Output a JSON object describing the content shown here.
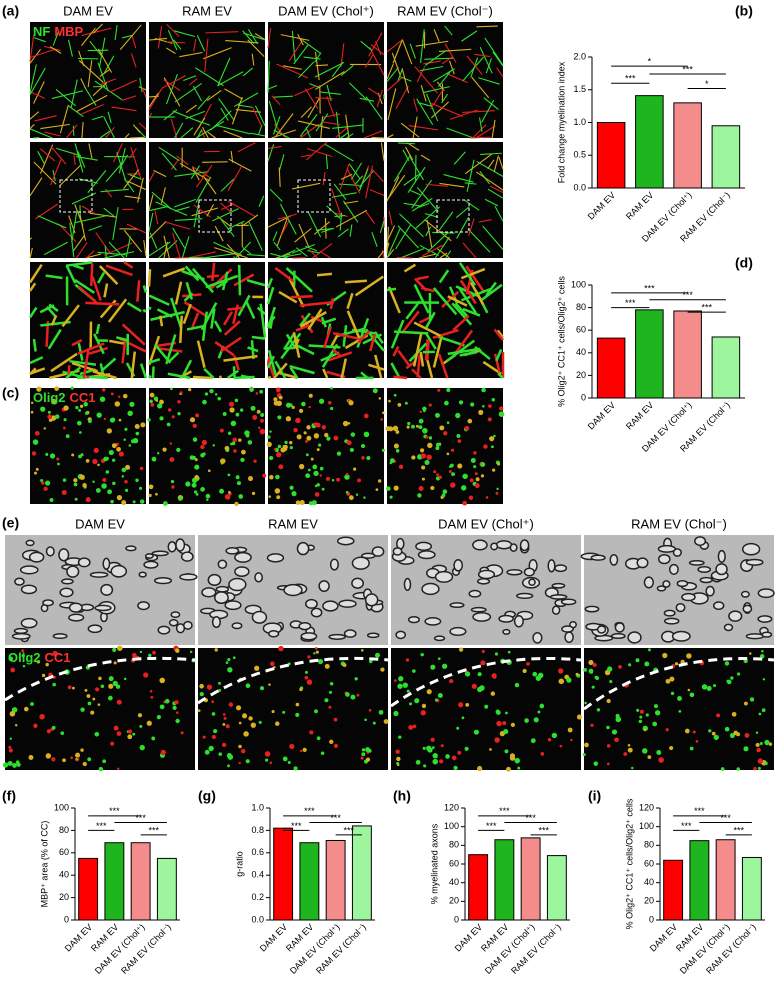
{
  "figure": {
    "panel_labels": [
      "(a)",
      "(b)",
      "(c)",
      "(d)",
      "(e)",
      "(f)",
      "(g)",
      "(h)",
      "(i)"
    ],
    "columns_a": [
      "DAM EV",
      "RAM EV",
      "DAM EV (Chol⁺)",
      "RAM EV (Chol⁻)"
    ],
    "columns_e": [
      "DAM EV",
      "RAM EV",
      "DAM EV (Chol⁺)",
      "RAM EV (Chol⁻)"
    ],
    "stain_a": [
      "NF",
      "MBP"
    ],
    "stain_c": [
      "Olig2",
      "CC1"
    ],
    "stain_e": [
      "Olig2",
      "CC1"
    ]
  },
  "chart_data": [
    {
      "type": "bar",
      "y_label": "Fold change myelination index",
      "categories": [
        "DAM EV",
        "RAM EV",
        "DAM EV (Chol⁺)",
        "RAM EV (Chol⁻)"
      ],
      "values": [
        1.0,
        1.41,
        1.3,
        0.95
      ],
      "colors": [
        "#ff0000",
        "#1fb51f",
        "#f58c8c",
        "#9df59d"
      ],
      "ylim": [
        0,
        2
      ],
      "yticks": [
        {
          "value": 0,
          "label": "0.0"
        },
        {
          "value": 0.5,
          "label": "0.5"
        },
        {
          "value": 1,
          "label": "1.0"
        },
        {
          "value": 1.5,
          "label": "1.5"
        },
        {
          "value": 2,
          "label": "2.0"
        }
      ],
      "annotations": [
        "***",
        "*",
        "***",
        "*"
      ]
    },
    {
      "type": "bar",
      "y_label": "% Olig2⁺ CC1⁺ cells/Olig2⁺ cells",
      "categories": [
        "DAM EV",
        "RAM EV",
        "DAM EV (Chol⁺)",
        "RAM EV (Chol⁻)"
      ],
      "values": [
        53,
        78,
        77,
        54
      ],
      "colors": [
        "#ff0000",
        "#1fb51f",
        "#f58c8c",
        "#9df59d"
      ],
      "ylim": [
        0,
        100
      ],
      "yticks": [
        0,
        20,
        40,
        60,
        80,
        100
      ],
      "annotations": [
        "***",
        "***",
        "***",
        "***"
      ]
    },
    {
      "type": "bar",
      "y_label": "MBP⁺ area (% of CC)",
      "categories": [
        "DAM EV",
        "RAM EV",
        "DAM EV (Chol⁺)",
        "RAM EV (Chol⁻)"
      ],
      "values": [
        55,
        69,
        69,
        55
      ],
      "colors": [
        "#ff0000",
        "#1fb51f",
        "#f58c8c",
        "#9df59d"
      ],
      "ylim": [
        0,
        100
      ],
      "yticks": [
        0,
        20,
        40,
        60,
        80,
        100
      ],
      "annotations": [
        "***",
        "***",
        "***",
        "***"
      ]
    },
    {
      "type": "bar",
      "y_label": "g-ratio",
      "categories": [
        "DAM EV",
        "RAM EV",
        "DAM EV (Chol⁺)",
        "RAM EV (Chol⁻)"
      ],
      "values": [
        0.82,
        0.69,
        0.71,
        0.84
      ],
      "colors": [
        "#ff0000",
        "#1fb51f",
        "#f58c8c",
        "#9df59d"
      ],
      "ylim": [
        0,
        1
      ],
      "yticks": [
        {
          "value": 0,
          "label": "0.0"
        },
        {
          "value": 0.2,
          "label": "0.2"
        },
        {
          "value": 0.4,
          "label": "0.4"
        },
        {
          "value": 0.6,
          "label": "0.6"
        },
        {
          "value": 0.8,
          "label": "0.8"
        },
        {
          "value": 1,
          "label": "1.0"
        }
      ],
      "annotations": [
        "***",
        "***",
        "***",
        "***"
      ]
    },
    {
      "type": "bar",
      "y_label": "% myelinated axons",
      "categories": [
        "DAM EV",
        "RAM EV",
        "DAM EV (Chol⁺)",
        "RAM EV (Chol⁻)"
      ],
      "values": [
        70,
        86,
        88,
        69
      ],
      "colors": [
        "#ff0000",
        "#1fb51f",
        "#f58c8c",
        "#9df59d"
      ],
      "ylim": [
        0,
        120
      ],
      "yticks": [
        0,
        20,
        40,
        60,
        80,
        100,
        120
      ],
      "annotations": [
        "***",
        "***",
        "***",
        "***"
      ]
    },
    {
      "type": "bar",
      "y_label": "% Olig2⁺ CC1⁺ cells/Olig2⁺ cells",
      "categories": [
        "DAM EV",
        "RAM EV",
        "DAM EV (Chol⁺)",
        "RAM EV (Chol⁻)"
      ],
      "values": [
        64,
        85,
        86,
        67
      ],
      "colors": [
        "#ff0000",
        "#1fb51f",
        "#f58c8c",
        "#9df59d"
      ],
      "ylim": [
        0,
        120
      ],
      "yticks": [
        0,
        20,
        40,
        60,
        80,
        100,
        120
      ],
      "annotations": [
        "***",
        "***",
        "***",
        "***"
      ]
    }
  ]
}
